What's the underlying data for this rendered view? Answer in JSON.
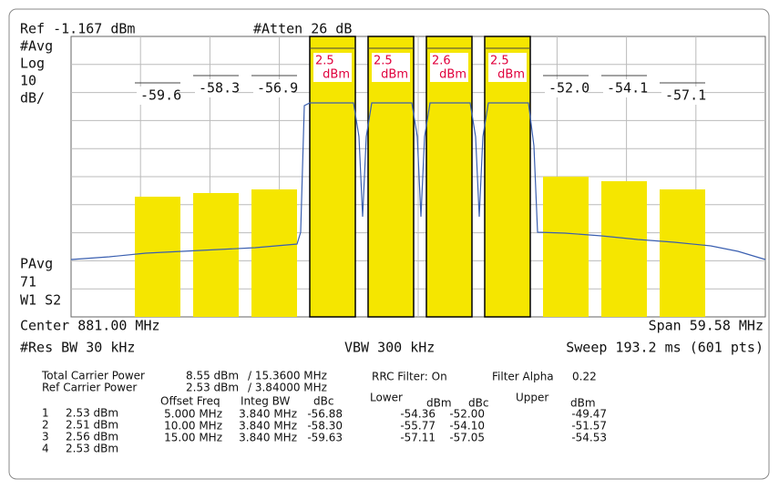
{
  "header": {
    "ref": "Ref -1.167 dBm",
    "atten": "#Atten 26 dB",
    "avg": "#Avg",
    "scale_type": "Log",
    "scale_value": "10",
    "scale_unit": "dB/",
    "pavg": "PAvg",
    "pavg_count": "71",
    "trace": "W1  S2"
  },
  "markers": {
    "lower": [
      "-59.6",
      "-58.3",
      "-56.9"
    ],
    "carriers": [
      {
        "value": "2.5",
        "unit": "dBm"
      },
      {
        "value": "2.5",
        "unit": "dBm"
      },
      {
        "value": "2.6",
        "unit": "dBm"
      },
      {
        "value": "2.5",
        "unit": "dBm"
      }
    ],
    "upper": [
      "-52.0",
      "-54.1",
      "-57.1"
    ]
  },
  "footer": {
    "center": "Center 881.00 MHz",
    "span": "Span 59.58 MHz",
    "res_bw": "#Res BW 30 kHz",
    "vbw": "VBW 300 kHz",
    "sweep": "Sweep 193.2 ms (601 pts)"
  },
  "summary": {
    "total_label": "Total Carrier Power",
    "total_value": "8.55 dBm",
    "total_bw": "/ 15.3600 MHz",
    "ref_label": "Ref Carrier Power",
    "ref_value": "2.53 dBm",
    "ref_bw": "/ 3.84000 MHz",
    "rrc": "RRC Filter: On",
    "alpha_label": "Filter Alpha",
    "alpha_value": "0.22"
  },
  "carrier_list": [
    [
      "1",
      "2.53 dBm"
    ],
    [
      "2",
      "2.51 dBm"
    ],
    [
      "3",
      "2.56 dBm"
    ],
    [
      "4",
      "2.53 dBm"
    ]
  ],
  "table": {
    "headers": [
      "Offset Freq",
      "Integ BW",
      "dBc",
      "Lower",
      "dBm",
      "dBc",
      "Upper",
      "dBm"
    ],
    "rows": [
      [
        "5.000 MHz",
        "3.840 MHz",
        "-56.88",
        "-54.36",
        "-52.00",
        "-49.47"
      ],
      [
        "10.00 MHz",
        "3.840 MHz",
        "-58.30",
        "-55.77",
        "-54.10",
        "-51.57"
      ],
      [
        "15.00 MHz",
        "3.840 MHz",
        "-59.63",
        "-57.11",
        "-57.05",
        "-54.53"
      ]
    ]
  }
}
